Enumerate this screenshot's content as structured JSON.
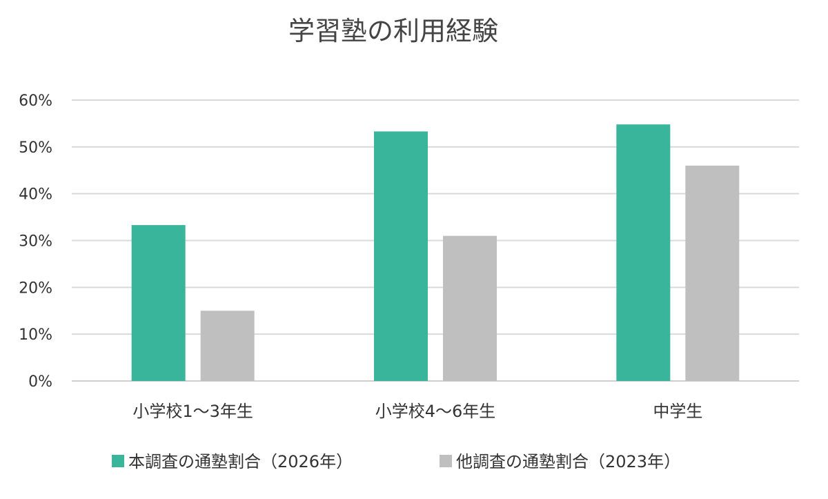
{
  "chart_data": {
    "type": "bar",
    "title": "学習塾の利用経験",
    "categories": [
      "小学校1〜3年生",
      "小学校4〜6年生",
      "中学生"
    ],
    "series": [
      {
        "name": "本調査の通塾割合（2026年）",
        "color": "#38b59b",
        "values": [
          33.3,
          53.3,
          54.8
        ]
      },
      {
        "name": "他調査の通塾割合（2023年）",
        "color": "#bfbfbf",
        "values": [
          15.0,
          31.0,
          46.0
        ]
      }
    ],
    "ylim": [
      0,
      60
    ],
    "yticks": [
      "0%",
      "10%",
      "20%",
      "30%",
      "40%",
      "50%",
      "60%"
    ],
    "grid": true,
    "legend_position": "bottom"
  }
}
